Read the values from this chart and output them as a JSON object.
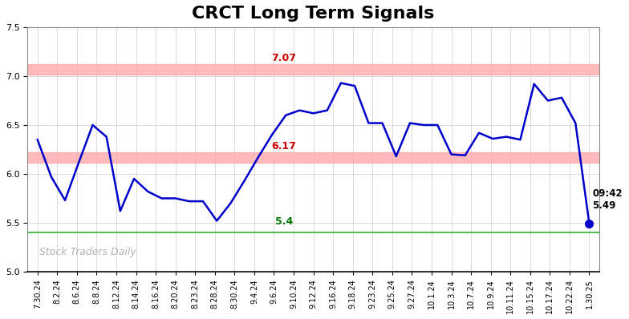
{
  "title": "CRCT Long Term Signals",
  "title_fontsize": 16,
  "title_fontweight": "bold",
  "ylim": [
    5.0,
    7.5
  ],
  "yticks": [
    5.0,
    5.5,
    6.0,
    6.5,
    7.0,
    7.5
  ],
  "line_color": "#0000cc",
  "line_width": 1.8,
  "marker_color": "#0000cc",
  "hline_upper": 7.07,
  "hline_mid": 6.17,
  "hline_lower": 5.4,
  "hline_upper_color": "#ffaaaa",
  "hline_mid_color": "#ffaaaa",
  "hline_lower_color": "#55bb55",
  "hline_upper_label_color": "#cc0000",
  "hline_mid_label_color": "#cc0000",
  "hline_lower_label_color": "#007700",
  "watermark": "Stock Traders Daily",
  "watermark_color": "#aaaaaa",
  "background_color": "#ffffff",
  "grid_color": "#cccccc",
  "annotation_time": "09:42",
  "annotation_price": "5.49",
  "x_labels": [
    "7.30.24",
    "8.2.24",
    "8.6.24",
    "8.8.24",
    "8.12.24",
    "8.14.24",
    "8.16.24",
    "8.20.24",
    "8.23.24",
    "8.28.24",
    "8.30.24",
    "9.4.24",
    "9.6.24",
    "9.10.24",
    "9.12.24",
    "9.16.24",
    "9.18.24",
    "9.23.24",
    "9.25.24",
    "9.27.24",
    "10.1.24",
    "10.3.24",
    "10.7.24",
    "10.9.24",
    "10.11.24",
    "10.15.24",
    "10.17.24",
    "10.22.24",
    "1.30.25"
  ],
  "y_values": [
    6.35,
    5.97,
    5.73,
    6.12,
    6.5,
    6.38,
    5.62,
    5.95,
    5.82,
    5.75,
    5.75,
    5.72,
    5.72,
    5.52,
    5.7,
    5.93,
    6.17,
    6.4,
    6.6,
    6.65,
    6.62,
    6.65,
    6.93,
    6.9,
    6.52,
    6.52,
    6.18,
    6.52,
    6.5,
    6.5,
    6.2,
    6.19,
    6.42,
    6.36,
    6.38,
    6.35,
    6.92,
    6.75,
    6.78,
    6.52,
    5.49
  ]
}
